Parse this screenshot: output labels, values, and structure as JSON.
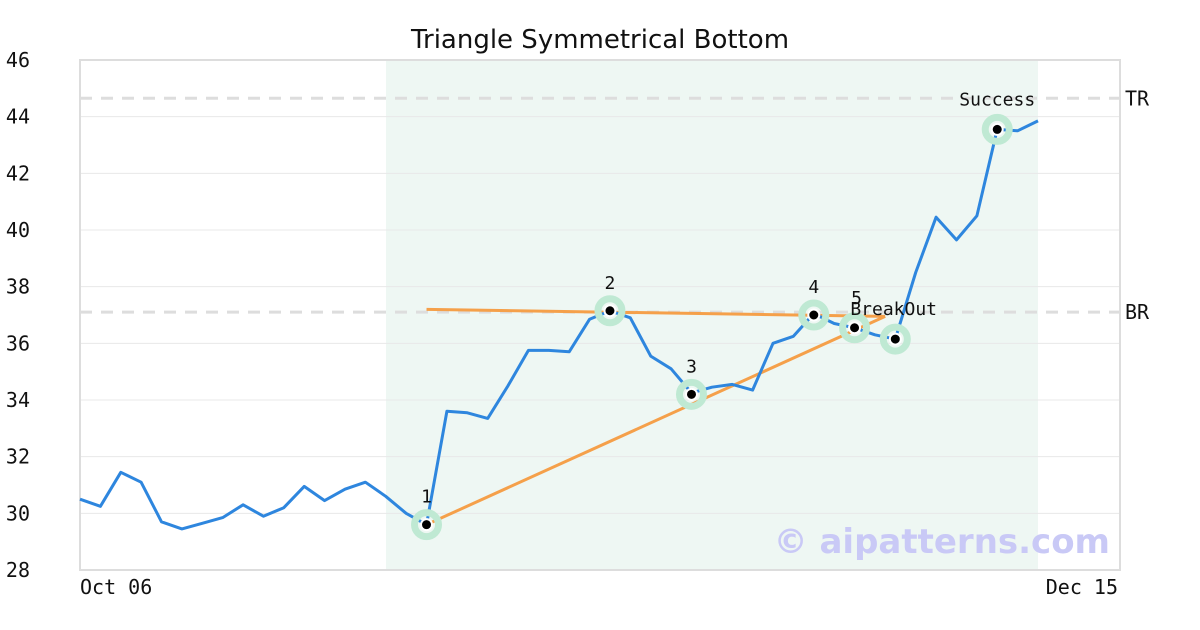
{
  "chart_data": {
    "type": "line",
    "title": "Triangle Symmetrical Bottom",
    "xlabel": "",
    "ylabel": "",
    "ylim": [
      28,
      46
    ],
    "y_ticks": [
      "28",
      "30",
      "32",
      "34",
      "36",
      "38",
      "40",
      "42",
      "44",
      "46"
    ],
    "x_tick_labels": [
      "Oct 06",
      "Dec 15"
    ],
    "grid": true,
    "pattern_region": {
      "start_index": 15,
      "end_index": 47,
      "color": "#eef7f3"
    },
    "series": [
      {
        "color": "#2e86de",
        "values": [
          30.5,
          30.25,
          31.45,
          31.1,
          29.7,
          29.45,
          29.65,
          29.85,
          30.3,
          29.9,
          30.2,
          30.95,
          30.45,
          30.85,
          31.1,
          30.6,
          30.0,
          29.6,
          33.6,
          33.55,
          33.35,
          34.5,
          35.75,
          35.75,
          35.7,
          36.85,
          37.15,
          36.9,
          35.55,
          35.1,
          34.25,
          34.45,
          34.55,
          34.35,
          36.0,
          36.25,
          37.05,
          36.7,
          36.55,
          36.3,
          36.15,
          38.5,
          40.45,
          39.65,
          40.5,
          43.55,
          43.5,
          43.85
        ]
      }
    ],
    "reference_lines": [
      {
        "label": "TR",
        "y": 44.65,
        "color": "#dddddd"
      },
      {
        "label": "BR",
        "y": 37.1,
        "color": "#dddddd"
      }
    ],
    "trend_lines": [
      {
        "x1": 17,
        "y1": 37.2,
        "x2": 39.5,
        "y2": 36.95,
        "color": "#f5a04a"
      },
      {
        "x1": 17,
        "y1": 29.6,
        "x2": 39.5,
        "y2": 36.95,
        "color": "#f5a04a"
      }
    ],
    "points": [
      {
        "label": "1",
        "x": 17,
        "y": 29.6
      },
      {
        "label": "2",
        "x": 26,
        "y": 37.15
      },
      {
        "label": "3",
        "x": 30,
        "y": 34.2
      },
      {
        "label": "4",
        "x": 36,
        "y": 37.0
      },
      {
        "label": "5",
        "x": 38,
        "y": 36.55
      },
      {
        "label": "BreakOut",
        "x": 40,
        "y": 36.15
      },
      {
        "label": "Success",
        "x": 45,
        "y": 43.55
      }
    ],
    "watermark": "© aipatterns.com"
  }
}
